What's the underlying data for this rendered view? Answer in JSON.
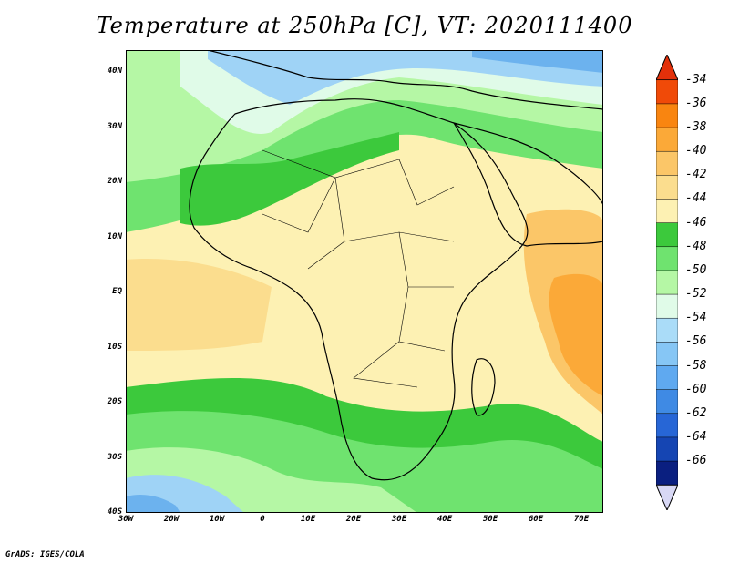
{
  "title": "Temperature at 250hPa [C], VT: 2020111400",
  "credit": "GrADS: IGES/COLA",
  "lat_ticks": [
    "40N",
    "30N",
    "20N",
    "10N",
    "EQ",
    "10S",
    "20S",
    "30S",
    "40S"
  ],
  "lon_ticks": [
    "30W",
    "20W",
    "10W",
    "0",
    "10E",
    "20E",
    "30E",
    "40E",
    "50E",
    "60E",
    "70E"
  ],
  "colorbar": {
    "labels": [
      "-34",
      "-36",
      "-38",
      "-40",
      "-42",
      "-44",
      "-46",
      "-48",
      "-50",
      "-52",
      "-54",
      "-56",
      "-58",
      "-60",
      "-62",
      "-64",
      "-66"
    ],
    "colors": [
      "#f04a08",
      "#f98510",
      "#fba938",
      "#fbc668",
      "#fbdd8e",
      "#fdf1b3",
      "#3cc93c",
      "#6fe36f",
      "#b5f7a5",
      "#e0fbe8",
      "#aadcf8",
      "#86c6f5",
      "#5fa9f0",
      "#3f8ae4",
      "#2766d6",
      "#1545b3",
      "#0a1f80"
    ],
    "top_arrow_color": "#e2300a",
    "bottom_arrow_color": "#d8d8f5"
  },
  "map_colors": {
    "cold_blue": "#9fd3f6",
    "deep_blue": "#6cb2ee",
    "pale_cyan": "#e0fbe8",
    "light_green": "#b5f7a5",
    "mid_green": "#6fe36f",
    "green": "#3cc93c",
    "cream": "#fdf1b3",
    "light_orange": "#fbdd8e",
    "orange": "#fbc668",
    "dark_orange": "#fba938"
  }
}
